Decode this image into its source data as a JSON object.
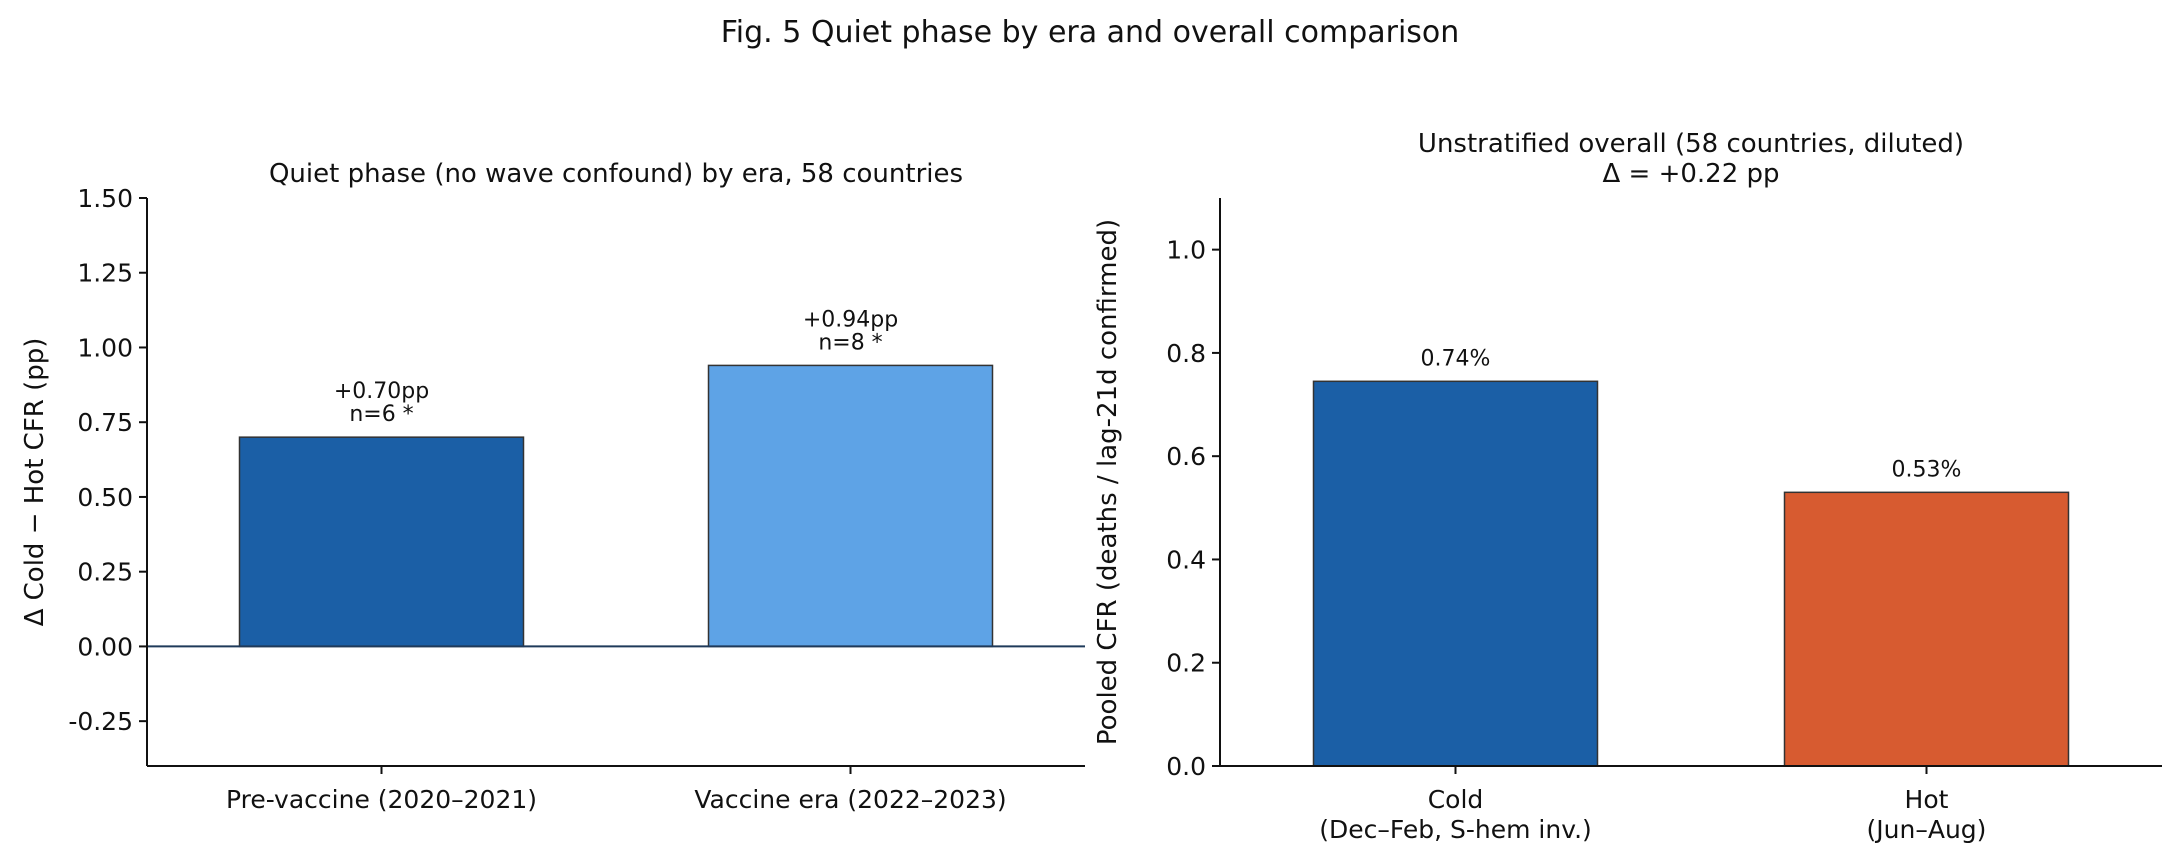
{
  "figure": {
    "suptitle": "Fig. 5    Quiet phase by era and overall comparison"
  },
  "colors": {
    "pre_vaccine": "#1b5fa6",
    "vaccine_era": "#5ea3e6",
    "cold": "#1b5fa6",
    "hot": "#d75b30",
    "bar_edge": "#333333",
    "zero_line": "#1f3a5a"
  },
  "chart_data": [
    {
      "type": "bar",
      "title": "Quiet phase (no wave confound) by era, 58 countries",
      "xlabel": "",
      "ylabel": "Δ Cold − Hot CFR (pp)",
      "categories": [
        "Pre-vaccine (2020–2021)",
        "Vaccine era (2022–2023)"
      ],
      "values": [
        0.7,
        0.94
      ],
      "annotations": [
        [
          "+0.70pp",
          "n=6  *"
        ],
        [
          "+0.94pp",
          "n=8  *"
        ]
      ],
      "ylim": [
        -0.4,
        1.5
      ],
      "yticks": [
        -0.25,
        0.0,
        0.25,
        0.5,
        0.75,
        1.0,
        1.25,
        1.5
      ],
      "ytick_labels": [
        "-0.25",
        "0.00",
        "0.25",
        "0.50",
        "0.75",
        "1.00",
        "1.25",
        "1.50"
      ],
      "zero_line": true,
      "grid": false,
      "legend": "none"
    },
    {
      "type": "bar",
      "title": [
        "Unstratified overall (58 countries, diluted)",
        "Δ = +0.22 pp"
      ],
      "xlabel": "",
      "ylabel": "Pooled CFR (deaths / lag-21d confirmed)",
      "categories": [
        [
          "Cold",
          "(Dec–Feb, S-hem inv.)"
        ],
        [
          "Hot",
          "(Jun–Aug)"
        ]
      ],
      "values": [
        0.745,
        0.53
      ],
      "annotations": [
        [
          "0.74%"
        ],
        [
          "0.53%"
        ]
      ],
      "ylim": [
        0.0,
        1.1
      ],
      "yticks": [
        0.0,
        0.2,
        0.4,
        0.6,
        0.8,
        1.0
      ],
      "ytick_labels": [
        "0.0",
        "0.2",
        "0.4",
        "0.6",
        "0.8",
        "1.0"
      ],
      "zero_line": false,
      "grid": false,
      "legend": "none"
    }
  ]
}
